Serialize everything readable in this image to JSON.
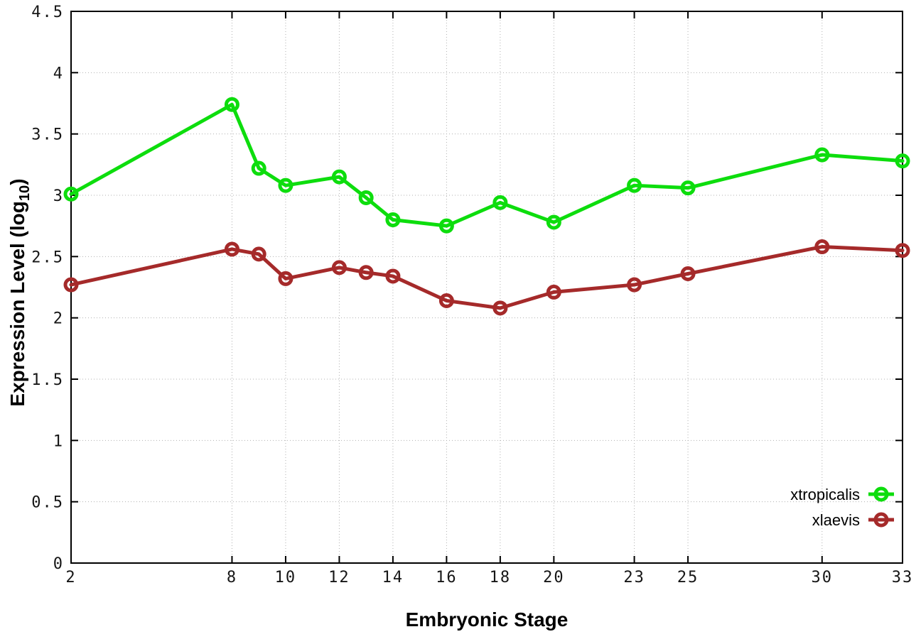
{
  "page": {
    "background": "#ffffff"
  },
  "chart_data": {
    "type": "line",
    "title": "",
    "xlabel": "Embryonic Stage",
    "ylabel": {
      "text": "Expression Level (log10)",
      "pre": "Expression Level (log",
      "sub": "10",
      "post": ")"
    },
    "x": [
      2,
      8,
      9,
      10,
      12,
      13,
      14,
      16,
      18,
      20,
      23,
      25,
      30,
      33
    ],
    "xticks": [
      2,
      8,
      10,
      12,
      14,
      16,
      18,
      20,
      23,
      25,
      30,
      33
    ],
    "yticks": [
      0,
      0.5,
      1,
      1.5,
      2,
      2.5,
      3,
      3.5,
      4,
      4.5
    ],
    "xlim": [
      2,
      33
    ],
    "ylim": [
      0,
      4.5
    ],
    "grid": true,
    "marker": "open-circle",
    "legend": {
      "position": "inside-bottom-right",
      "entries": [
        "xtropicalis",
        "xlaevis"
      ]
    },
    "series": [
      {
        "name": "xtropicalis",
        "color": "#0ddd0d",
        "values": [
          3.01,
          3.74,
          3.22,
          3.08,
          3.15,
          2.98,
          2.8,
          2.75,
          2.94,
          2.78,
          3.08,
          3.06,
          3.33,
          3.28
        ]
      },
      {
        "name": "xlaevis",
        "color": "#a52a2a",
        "values": [
          2.27,
          2.56,
          2.52,
          2.32,
          2.41,
          2.37,
          2.34,
          2.14,
          2.08,
          2.21,
          2.27,
          2.36,
          2.58,
          2.55
        ]
      }
    ]
  }
}
